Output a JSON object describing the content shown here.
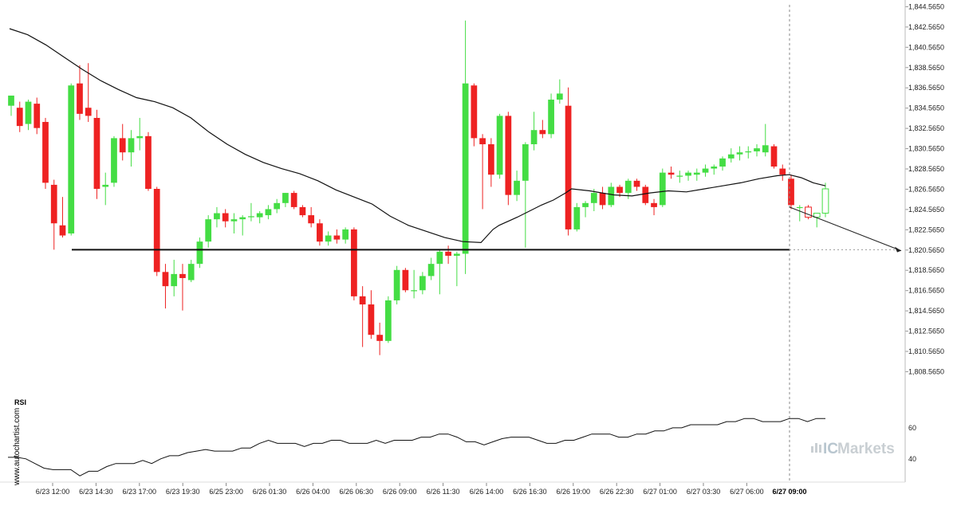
{
  "chart_data": {
    "type": "candlestick",
    "price_axis": {
      "range": [
        1807.5,
        1844.6
      ],
      "ticks": [
        "1,844.5650",
        "1,842.5650",
        "1,840.5650",
        "1,838.5650",
        "1,836.5650",
        "1,834.5650",
        "1,832.5650",
        "1,830.5650",
        "1,828.5650",
        "1,826.5650",
        "1,824.5650",
        "1,822.5650",
        "1,820.5650",
        "1,818.5650",
        "1,816.5650",
        "1,814.5650",
        "1,812.5650",
        "1,810.5650",
        "1,808.5650"
      ]
    },
    "time_axis": {
      "labels": [
        "6/23 12:00",
        "6/23 14:30",
        "6/23 17:00",
        "6/23 19:30",
        "6/25 23:00",
        "6/26 01:30",
        "6/26 04:00",
        "6/26 06:30",
        "6/26 09:00",
        "6/26 11:30",
        "6/26 14:00",
        "6/26 16:30",
        "6/26 19:00",
        "6/26 22:30",
        "6/27 01:00",
        "6/27 03:30",
        "6/27 06:00"
      ],
      "current_label": "6/27 09:00",
      "grid": false
    },
    "candles": [
      {
        "o": 1834.8,
        "h": 1835.8,
        "l": 1833.8,
        "c": 1835.8
      },
      {
        "o": 1834.6,
        "h": 1835.2,
        "l": 1832.2,
        "c": 1832.8
      },
      {
        "o": 1833.0,
        "h": 1835.4,
        "l": 1832.4,
        "c": 1835.2
      },
      {
        "o": 1835.0,
        "h": 1835.6,
        "l": 1832.0,
        "c": 1832.6
      },
      {
        "o": 1833.2,
        "h": 1833.6,
        "l": 1826.6,
        "c": 1827.2
      },
      {
        "o": 1827.0,
        "h": 1827.5,
        "l": 1820.6,
        "c": 1823.2
      },
      {
        "o": 1823.0,
        "h": 1825.8,
        "l": 1821.8,
        "c": 1822.0
      },
      {
        "o": 1822.2,
        "h": 1837.0,
        "l": 1822.0,
        "c": 1836.8
      },
      {
        "o": 1837.0,
        "h": 1838.8,
        "l": 1833.4,
        "c": 1834.0
      },
      {
        "o": 1834.6,
        "h": 1839.0,
        "l": 1833.2,
        "c": 1833.8
      },
      {
        "o": 1833.6,
        "h": 1834.4,
        "l": 1825.6,
        "c": 1826.6
      },
      {
        "o": 1826.8,
        "h": 1828.2,
        "l": 1825.0,
        "c": 1827.0
      },
      {
        "o": 1827.2,
        "h": 1831.8,
        "l": 1826.8,
        "c": 1831.6
      },
      {
        "o": 1831.6,
        "h": 1833.0,
        "l": 1829.4,
        "c": 1830.2
      },
      {
        "o": 1830.2,
        "h": 1832.4,
        "l": 1828.8,
        "c": 1831.6
      },
      {
        "o": 1831.6,
        "h": 1833.6,
        "l": 1830.4,
        "c": 1831.8
      },
      {
        "o": 1831.8,
        "h": 1832.2,
        "l": 1826.4,
        "c": 1826.6
      },
      {
        "o": 1826.6,
        "h": 1826.8,
        "l": 1818.0,
        "c": 1818.4
      },
      {
        "o": 1818.4,
        "h": 1819.2,
        "l": 1814.8,
        "c": 1817.0
      },
      {
        "o": 1817.0,
        "h": 1819.6,
        "l": 1816.0,
        "c": 1818.2
      },
      {
        "o": 1818.2,
        "h": 1819.2,
        "l": 1814.6,
        "c": 1817.8
      },
      {
        "o": 1817.6,
        "h": 1819.6,
        "l": 1817.4,
        "c": 1819.2
      },
      {
        "o": 1819.2,
        "h": 1821.8,
        "l": 1818.8,
        "c": 1821.4
      },
      {
        "o": 1821.4,
        "h": 1824.0,
        "l": 1820.8,
        "c": 1823.6
      },
      {
        "o": 1823.6,
        "h": 1824.8,
        "l": 1822.8,
        "c": 1824.2
      },
      {
        "o": 1824.2,
        "h": 1824.6,
        "l": 1822.8,
        "c": 1823.4
      },
      {
        "o": 1823.4,
        "h": 1824.2,
        "l": 1822.2,
        "c": 1823.6
      },
      {
        "o": 1823.6,
        "h": 1824.0,
        "l": 1822.0,
        "c": 1823.8
      },
      {
        "o": 1823.8,
        "h": 1825.2,
        "l": 1823.4,
        "c": 1823.9
      },
      {
        "o": 1823.8,
        "h": 1824.4,
        "l": 1823.2,
        "c": 1824.2
      },
      {
        "o": 1824.0,
        "h": 1825.0,
        "l": 1823.6,
        "c": 1824.6
      },
      {
        "o": 1824.6,
        "h": 1825.6,
        "l": 1824.2,
        "c": 1825.2
      },
      {
        "o": 1825.2,
        "h": 1826.2,
        "l": 1824.8,
        "c": 1826.2
      },
      {
        "o": 1826.2,
        "h": 1826.4,
        "l": 1824.6,
        "c": 1824.8
      },
      {
        "o": 1824.8,
        "h": 1825.0,
        "l": 1823.8,
        "c": 1824.0
      },
      {
        "o": 1824.0,
        "h": 1824.8,
        "l": 1822.8,
        "c": 1823.2
      },
      {
        "o": 1823.2,
        "h": 1823.6,
        "l": 1821.0,
        "c": 1821.4
      },
      {
        "o": 1821.4,
        "h": 1822.4,
        "l": 1821.0,
        "c": 1822.0
      },
      {
        "o": 1822.0,
        "h": 1822.6,
        "l": 1821.2,
        "c": 1821.6
      },
      {
        "o": 1821.6,
        "h": 1822.8,
        "l": 1821.2,
        "c": 1822.6
      },
      {
        "o": 1822.6,
        "h": 1822.8,
        "l": 1815.6,
        "c": 1816.0
      },
      {
        "o": 1816.0,
        "h": 1817.0,
        "l": 1811.0,
        "c": 1815.2
      },
      {
        "o": 1815.2,
        "h": 1816.6,
        "l": 1811.8,
        "c": 1812.2
      },
      {
        "o": 1812.2,
        "h": 1813.4,
        "l": 1810.2,
        "c": 1811.6
      },
      {
        "o": 1811.6,
        "h": 1816.0,
        "l": 1811.4,
        "c": 1815.6
      },
      {
        "o": 1815.6,
        "h": 1819.0,
        "l": 1815.2,
        "c": 1818.6
      },
      {
        "o": 1818.6,
        "h": 1818.8,
        "l": 1816.4,
        "c": 1816.6
      },
      {
        "o": 1816.6,
        "h": 1818.6,
        "l": 1815.8,
        "c": 1816.6
      },
      {
        "o": 1816.6,
        "h": 1818.4,
        "l": 1816.2,
        "c": 1818.0
      },
      {
        "o": 1818.0,
        "h": 1819.8,
        "l": 1817.6,
        "c": 1819.2
      },
      {
        "o": 1819.2,
        "h": 1820.6,
        "l": 1816.2,
        "c": 1820.4
      },
      {
        "o": 1820.4,
        "h": 1821.0,
        "l": 1819.2,
        "c": 1820.0
      },
      {
        "o": 1820.0,
        "h": 1820.4,
        "l": 1817.0,
        "c": 1820.2
      },
      {
        "o": 1820.2,
        "h": 1843.2,
        "l": 1818.2,
        "c": 1837.0
      },
      {
        "o": 1836.8,
        "h": 1837.0,
        "l": 1830.8,
        "c": 1831.6
      },
      {
        "o": 1831.6,
        "h": 1832.0,
        "l": 1824.6,
        "c": 1831.0
      },
      {
        "o": 1831.0,
        "h": 1831.6,
        "l": 1826.8,
        "c": 1828.0
      },
      {
        "o": 1828.0,
        "h": 1834.0,
        "l": 1827.6,
        "c": 1833.8
      },
      {
        "o": 1833.8,
        "h": 1834.2,
        "l": 1825.0,
        "c": 1826.0
      },
      {
        "o": 1826.0,
        "h": 1828.4,
        "l": 1825.4,
        "c": 1827.4
      },
      {
        "o": 1827.4,
        "h": 1831.2,
        "l": 1820.8,
        "c": 1831.0
      },
      {
        "o": 1831.0,
        "h": 1834.2,
        "l": 1830.4,
        "c": 1832.4
      },
      {
        "o": 1832.4,
        "h": 1833.4,
        "l": 1831.6,
        "c": 1832.0
      },
      {
        "o": 1832.0,
        "h": 1836.0,
        "l": 1831.6,
        "c": 1835.4
      },
      {
        "o": 1835.4,
        "h": 1837.4,
        "l": 1835.0,
        "c": 1836.0
      },
      {
        "o": 1834.8,
        "h": 1836.6,
        "l": 1822.0,
        "c": 1822.6
      },
      {
        "o": 1822.6,
        "h": 1825.2,
        "l": 1822.4,
        "c": 1824.8
      },
      {
        "o": 1824.8,
        "h": 1825.4,
        "l": 1823.8,
        "c": 1825.2
      },
      {
        "o": 1825.2,
        "h": 1826.6,
        "l": 1824.4,
        "c": 1826.2
      },
      {
        "o": 1826.2,
        "h": 1826.8,
        "l": 1824.6,
        "c": 1825.0
      },
      {
        "o": 1825.0,
        "h": 1827.2,
        "l": 1824.8,
        "c": 1826.8
      },
      {
        "o": 1826.8,
        "h": 1827.0,
        "l": 1825.8,
        "c": 1826.2
      },
      {
        "o": 1826.2,
        "h": 1827.6,
        "l": 1825.6,
        "c": 1827.4
      },
      {
        "o": 1827.4,
        "h": 1827.6,
        "l": 1826.4,
        "c": 1826.8
      },
      {
        "o": 1826.8,
        "h": 1827.0,
        "l": 1825.0,
        "c": 1825.2
      },
      {
        "o": 1825.2,
        "h": 1825.6,
        "l": 1824.0,
        "c": 1824.8
      },
      {
        "o": 1825.0,
        "h": 1828.6,
        "l": 1824.8,
        "c": 1828.2
      },
      {
        "o": 1828.2,
        "h": 1828.8,
        "l": 1827.6,
        "c": 1828.0
      },
      {
        "o": 1827.8,
        "h": 1828.4,
        "l": 1827.2,
        "c": 1827.9
      },
      {
        "o": 1827.9,
        "h": 1828.4,
        "l": 1827.4,
        "c": 1828.2
      },
      {
        "o": 1828.0,
        "h": 1828.6,
        "l": 1827.4,
        "c": 1828.2
      },
      {
        "o": 1828.2,
        "h": 1829.0,
        "l": 1827.8,
        "c": 1828.6
      },
      {
        "o": 1828.6,
        "h": 1829.0,
        "l": 1828.0,
        "c": 1828.8
      },
      {
        "o": 1828.8,
        "h": 1829.8,
        "l": 1828.4,
        "c": 1829.6
      },
      {
        "o": 1829.6,
        "h": 1830.6,
        "l": 1829.2,
        "c": 1830.0
      },
      {
        "o": 1830.0,
        "h": 1830.8,
        "l": 1829.4,
        "c": 1830.2
      },
      {
        "o": 1830.2,
        "h": 1830.8,
        "l": 1829.6,
        "c": 1830.3
      },
      {
        "o": 1830.3,
        "h": 1831.0,
        "l": 1829.8,
        "c": 1830.6
      },
      {
        "o": 1830.2,
        "h": 1833.0,
        "l": 1829.8,
        "c": 1830.9
      },
      {
        "o": 1830.8,
        "h": 1831.0,
        "l": 1828.6,
        "c": 1828.8
      },
      {
        "o": 1828.6,
        "h": 1829.0,
        "l": 1827.4,
        "c": 1828.0
      },
      {
        "o": 1827.6,
        "h": 1828.0,
        "l": 1824.6,
        "c": 1825.0
      },
      {
        "o": 1824.8,
        "h": 1825.0,
        "l": 1823.4,
        "c": 1824.8
      },
      {
        "o": 1824.8,
        "h": 1825.0,
        "l": 1823.6,
        "c": 1823.8
      },
      {
        "o": 1823.8,
        "h": 1824.2,
        "l": 1822.8,
        "c": 1824.2
      },
      {
        "o": 1824.2,
        "h": 1827.2,
        "l": 1823.8,
        "c": 1826.6
      }
    ],
    "moving_average": [
      [
        0,
        1842.4
      ],
      [
        3,
        1841.8
      ],
      [
        6,
        1840.8
      ],
      [
        9,
        1839.6
      ],
      [
        12,
        1838.4
      ],
      [
        15,
        1837.3
      ],
      [
        18,
        1836.4
      ],
      [
        21,
        1835.6
      ],
      [
        24,
        1835.2
      ],
      [
        27,
        1834.6
      ],
      [
        30,
        1833.6
      ],
      [
        33,
        1832.2
      ],
      [
        36,
        1831.0
      ],
      [
        39,
        1830.0
      ],
      [
        42,
        1829.2
      ],
      [
        45,
        1828.6
      ],
      [
        48,
        1828.1
      ],
      [
        51,
        1827.4
      ],
      [
        54,
        1826.5
      ],
      [
        57,
        1825.8
      ],
      [
        60,
        1825.1
      ],
      [
        63,
        1823.9
      ],
      [
        66,
        1823.0
      ],
      [
        69,
        1822.4
      ],
      [
        72,
        1821.8
      ],
      [
        75,
        1821.4
      ],
      [
        78,
        1821.3
      ],
      [
        80,
        1822.6
      ],
      [
        81,
        1823.0
      ],
      [
        84,
        1823.8
      ],
      [
        86,
        1824.4
      ],
      [
        88,
        1825.0
      ],
      [
        90,
        1825.5
      ],
      [
        92,
        1826.2
      ],
      [
        93,
        1826.6
      ],
      [
        96,
        1826.4
      ],
      [
        100,
        1826.0
      ],
      [
        103,
        1825.9
      ],
      [
        106,
        1826.2
      ],
      [
        109,
        1826.4
      ],
      [
        112,
        1826.3
      ],
      [
        115,
        1826.6
      ],
      [
        118,
        1826.9
      ],
      [
        121,
        1827.2
      ],
      [
        124,
        1827.6
      ],
      [
        127,
        1827.9
      ],
      [
        129,
        1828.0
      ],
      [
        131,
        1827.7
      ],
      [
        133,
        1827.2
      ],
      [
        135,
        1826.9
      ]
    ],
    "support_level": 1820.6,
    "projection": [
      [
        1824.8,
        1820.5
      ]
    ],
    "rsi": {
      "label": "RSI",
      "ticks": [
        60,
        40
      ],
      "range": [
        25,
        80
      ],
      "values": [
        41,
        41,
        40,
        37,
        34,
        33,
        33,
        33,
        29,
        32,
        32,
        35,
        37,
        37,
        37,
        39,
        37,
        40,
        42,
        42,
        44,
        45,
        46,
        45,
        45,
        45,
        47,
        47,
        50,
        52,
        50,
        50,
        50,
        48,
        50,
        50,
        52,
        52,
        50,
        50,
        50,
        52,
        50,
        52,
        52,
        52,
        54,
        54,
        56,
        56,
        54,
        51,
        51,
        49,
        51,
        53,
        54,
        54,
        54,
        52,
        50,
        50,
        52,
        52,
        54,
        56,
        56,
        56,
        54,
        54,
        56,
        56,
        58,
        58,
        60,
        60,
        62,
        62,
        62,
        62,
        64,
        64,
        66,
        66,
        64,
        64,
        64,
        66,
        66,
        64,
        66,
        66
      ],
      "grid": false
    },
    "current_marker_index": 0.93
  },
  "watermark": "www.autochartist.com",
  "brand": {
    "icon": "bars-logo-icon",
    "prefix": "IC",
    "name": "Markets"
  },
  "colors": {
    "bull": "#44dd44",
    "bear": "#ee2222",
    "ma_line": "#111111",
    "support": "#111111",
    "rsi_line": "#111111",
    "brand": "#c9cfd3"
  }
}
